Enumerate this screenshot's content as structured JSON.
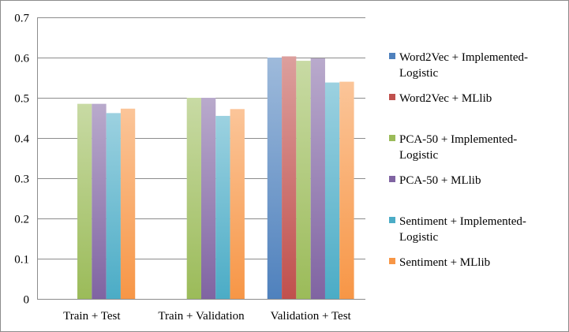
{
  "chart_data": {
    "type": "bar",
    "categories": [
      "Train + Test",
      "Train + Validation",
      "Validation + Test"
    ],
    "ylim": [
      0,
      0.7
    ],
    "yticks": [
      "0",
      "0.1",
      "0.2",
      "0.3",
      "0.4",
      "0.5",
      "0.6",
      "0.7"
    ],
    "grid": true,
    "legend_position": "right",
    "series": [
      {
        "name": "Word2Vec + Implemented-Logistic",
        "legend_lines": [
          "Word2Vec + Implemented-",
          "Logistic"
        ],
        "color": "#4f81bd",
        "values": [
          null,
          null,
          0.6
        ]
      },
      {
        "name": "Word2Vec + MLlib",
        "legend_lines": [
          "Word2Vec + MLlib"
        ],
        "color": "#c0504d",
        "values": [
          null,
          null,
          0.603
        ]
      },
      {
        "name": "PCA-50 + Implemented-Logistic",
        "legend_lines": [
          "PCA-50 + Implemented-",
          "Logistic"
        ],
        "color": "#9bbb59",
        "values": [
          0.485,
          0.5,
          0.592
        ]
      },
      {
        "name": "PCA-50 + MLlib",
        "legend_lines": [
          "PCA-50 + MLlib"
        ],
        "color": "#8064a2",
        "values": [
          0.485,
          0.5,
          0.598
        ]
      },
      {
        "name": "Sentiment + Implemented-Logistic",
        "legend_lines": [
          "Sentiment + Implemented-",
          "Logistic"
        ],
        "color": "#4bacc6",
        "values": [
          0.462,
          0.455,
          0.538
        ]
      },
      {
        "name": "Sentiment + MLlib",
        "legend_lines": [
          "Sentiment + MLlib"
        ],
        "color": "#f79646",
        "values": [
          0.473,
          0.472,
          0.54
        ]
      }
    ]
  }
}
